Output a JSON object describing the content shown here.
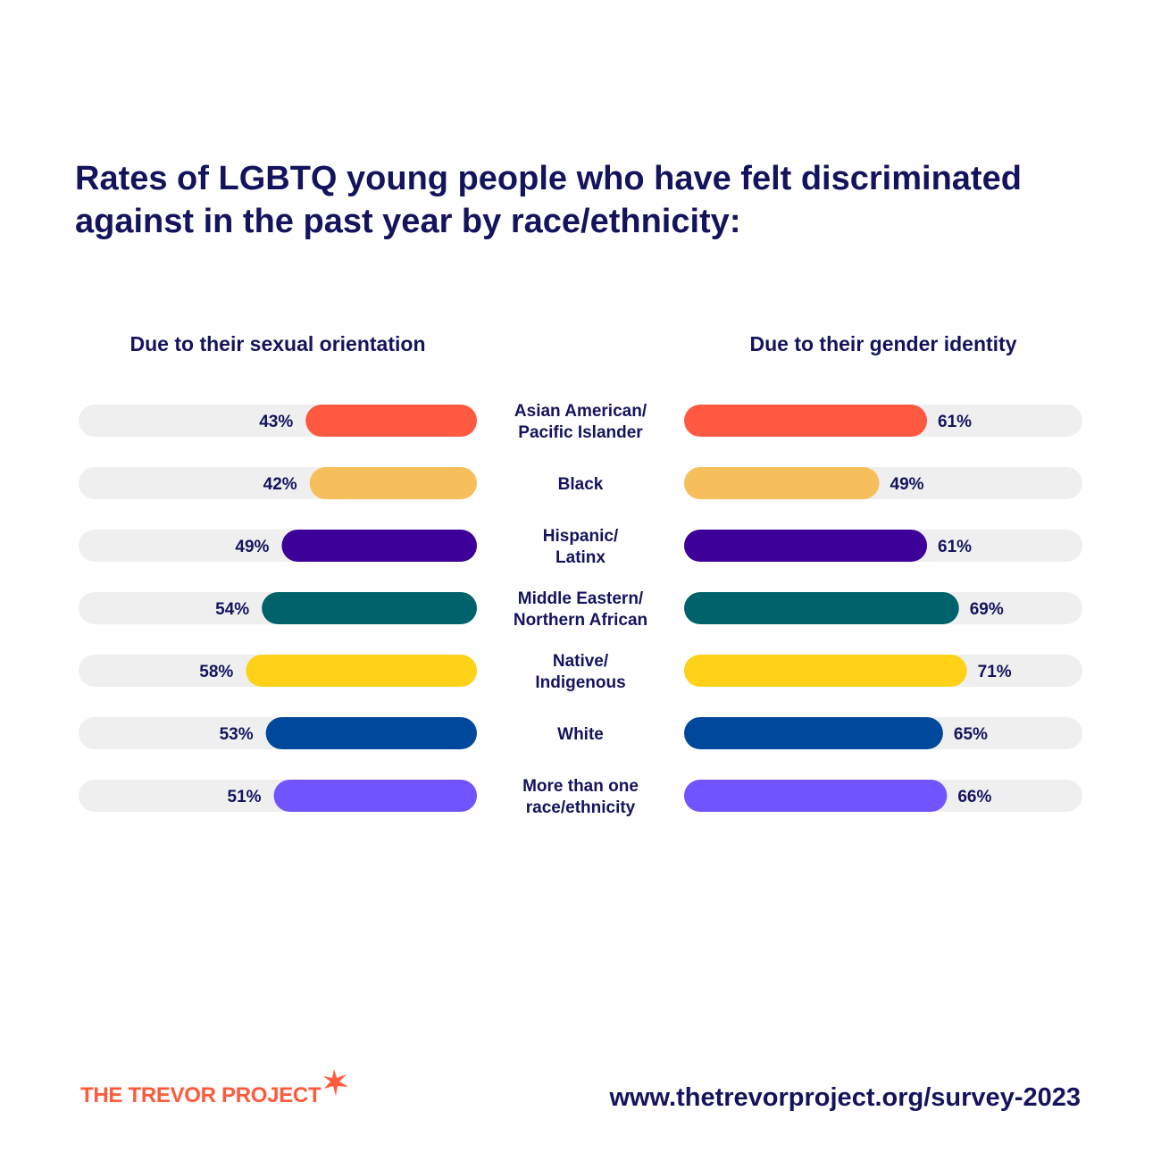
{
  "title_lines": [
    "Rates of LGBTQ young people who have felt discriminated",
    "against in the past year by race/ethnicity:"
  ],
  "chart_data": {
    "type": "bar",
    "categories": [
      [
        "Asian American/",
        "Pacific Islander"
      ],
      [
        "Black"
      ],
      [
        "Hispanic/",
        "Latinx"
      ],
      [
        "Middle Eastern/",
        "Northern African"
      ],
      [
        "Native/",
        "Indigenous"
      ],
      [
        "White"
      ],
      [
        "More than one",
        "race/ethnicity"
      ]
    ],
    "colors": [
      "#ff5a41",
      "#f7bf5b",
      "#3d0099",
      "#00626a",
      "#ffd217",
      "#00489c",
      "#7055ff"
    ],
    "track_color": "#efefef",
    "series": [
      {
        "name": "Due to their sexual orientation",
        "values": [
          43,
          42,
          49,
          54,
          58,
          53,
          51
        ],
        "labels": [
          "43%",
          "42%",
          "49%",
          "54%",
          "58%",
          "53%",
          "51%"
        ]
      },
      {
        "name": "Due to their gender identity",
        "values": [
          61,
          49,
          61,
          69,
          71,
          65,
          66
        ],
        "labels": [
          "61%",
          "49%",
          "61%",
          "69%",
          "71%",
          "65%",
          "66%"
        ]
      }
    ]
  },
  "footer": {
    "logo_text": "THE TREVOR PROJECT",
    "url": "www.thetrevorproject.org/survey-2023",
    "accent_color": "#ff5a3c"
  }
}
